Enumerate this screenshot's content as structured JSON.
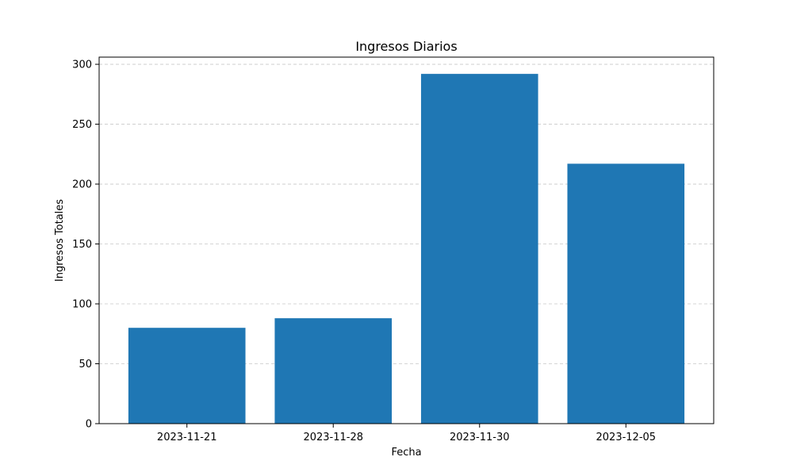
{
  "chart_data": {
    "type": "bar",
    "title": "Ingresos Diarios",
    "xlabel": "Fecha",
    "ylabel": "Ingresos Totales",
    "categories": [
      "2023-11-21",
      "2023-11-28",
      "2023-11-30",
      "2023-12-05"
    ],
    "values": [
      80,
      88,
      292,
      217
    ],
    "ylim": [
      0,
      306
    ],
    "yticks": [
      0,
      50,
      100,
      150,
      200,
      250,
      300
    ],
    "grid": "horizontal dashed",
    "legend": "none",
    "bar_color": "#1f77b4"
  }
}
